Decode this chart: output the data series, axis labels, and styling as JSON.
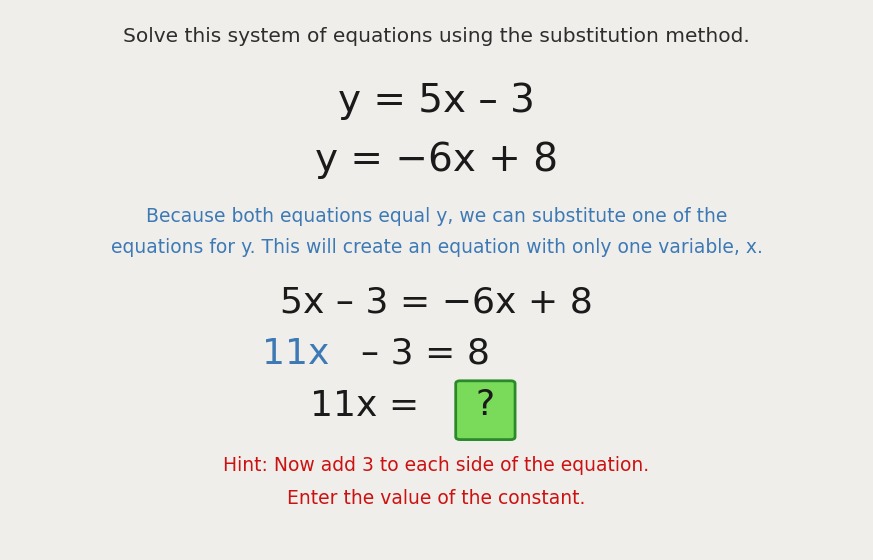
{
  "background_color": "#f0eeeb",
  "title_text": "Solve this system of equations using the substitution method.",
  "title_color": "#2d2d2d",
  "title_fontsize": 14.5,
  "eq1": "y = 5x – 3",
  "eq2": "y = −6x + 8",
  "eq_color": "#1a1a1a",
  "eq_fontsize": 28,
  "explanation_line1": "Because both equations equal y, we can substitute one of the",
  "explanation_line2": "equations for y. This will create an equation with only one variable, x.",
  "explanation_color": "#3d7ab5",
  "explanation_fontsize": 13.5,
  "step1": "5x – 3 = −6x + 8",
  "step1_color": "#1a1a1a",
  "step1_fontsize": 26,
  "step2_blue": "11x",
  "step2_rest": "– 3 = 8",
  "step2_blue_color": "#3d7ab5",
  "step2_rest_color": "#1a1a1a",
  "step2_fontsize": 26,
  "step3_prefix": "11x = ",
  "step3_prefix_color": "#1a1a1a",
  "step3_box_text": "?",
  "step3_box_text_color": "#1a1a1a",
  "step3_box_bg": "#7adb5a",
  "step3_box_border": "#2a8a2a",
  "step3_fontsize": 26,
  "hint_line1": "Hint: Now add 3 to each side of the equation.",
  "hint_line2": "Enter the value of the constant.",
  "hint_color": "#cc1111",
  "hint_fontsize": 13.5
}
